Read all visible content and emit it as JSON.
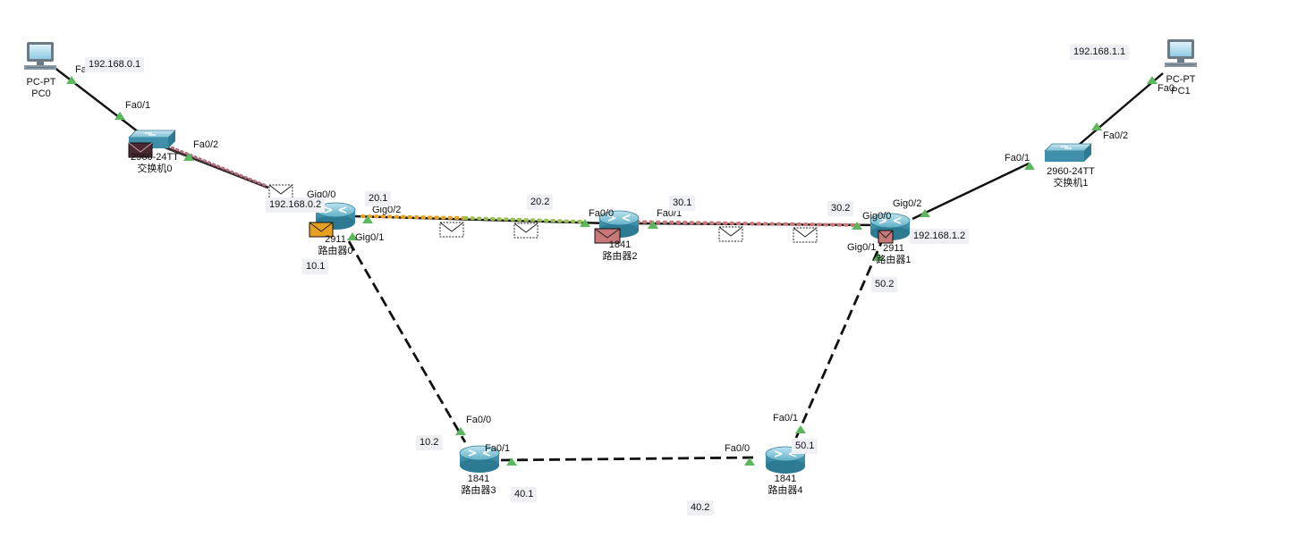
{
  "devices": {
    "pc0": {
      "model": "PC-PT",
      "name": "PC0"
    },
    "pc1": {
      "model": "PC-PT",
      "name": "PC1"
    },
    "switch0": {
      "model": "2960-24TT",
      "name": "交换机0"
    },
    "switch1": {
      "model": "2960-24TT",
      "name": "交换机1"
    },
    "router0": {
      "model": "2911",
      "name": "路由器0"
    },
    "router1": {
      "model": "2911",
      "name": "路由器1"
    },
    "router2": {
      "model": "1841",
      "name": "路由器2"
    },
    "router3": {
      "model": "1841",
      "name": "路由器3"
    },
    "router4": {
      "model": "1841",
      "name": "路由器4"
    }
  },
  "ports": {
    "pc0_fa0": "Fa0",
    "sw0_fa01": "Fa0/1",
    "sw0_fa02": "Fa0/2",
    "r0_gig00": "Gig0/0",
    "r0_gig02": "Gig0/2",
    "r0_gig01": "Gig0/1",
    "r2_fa00": "Fa0/0",
    "r2_fa01": "Fa0/1",
    "r1_gig00": "Gig0/0",
    "r1_gig01": "Gig0/1",
    "r1_gig02": "Gig0/2",
    "sw1_fa01": "Fa0/1",
    "sw1_fa02": "Fa0/2",
    "pc1_fa0": "Fa0",
    "r3_fa00": "Fa0/0",
    "r3_fa01": "Fa0/1",
    "r4_fa00": "Fa0/0",
    "r4_fa01": "Fa0/1"
  },
  "ip_labels": {
    "pc0_ip": "192.168.0.1",
    "r0_lan": "192.168.0.2",
    "pc1_ip": "192.168.1.1",
    "r1_lan": "192.168.1.2",
    "r0_r2_a": "20.1",
    "r0_r2_b": "20.2",
    "r2_r1_a": "30.1",
    "r2_r1_b": "30.2",
    "r0_r3_a": "10.1",
    "r0_r3_b": "10.2",
    "r3_r4_a": "40.1",
    "r3_r4_b": "40.2",
    "r4_r1_a": "50.1",
    "r4_r1_b": "50.2"
  },
  "colors": {
    "link": "#111111",
    "port_up": "#5cb85c",
    "router_body": "#3b95b0",
    "switch_body": "#4a9bb5",
    "pdu_orange": "#e8a020",
    "pdu_pink": "#c87878",
    "pdu_dark": "#4a2a30",
    "ip_box_bg": "#eef0f6"
  },
  "icons": {
    "pc": "desktop-computer-icon",
    "switch": "network-switch-icon",
    "router": "router-icon",
    "pdu": "envelope-icon",
    "port": "port-status-triangle-icon"
  }
}
